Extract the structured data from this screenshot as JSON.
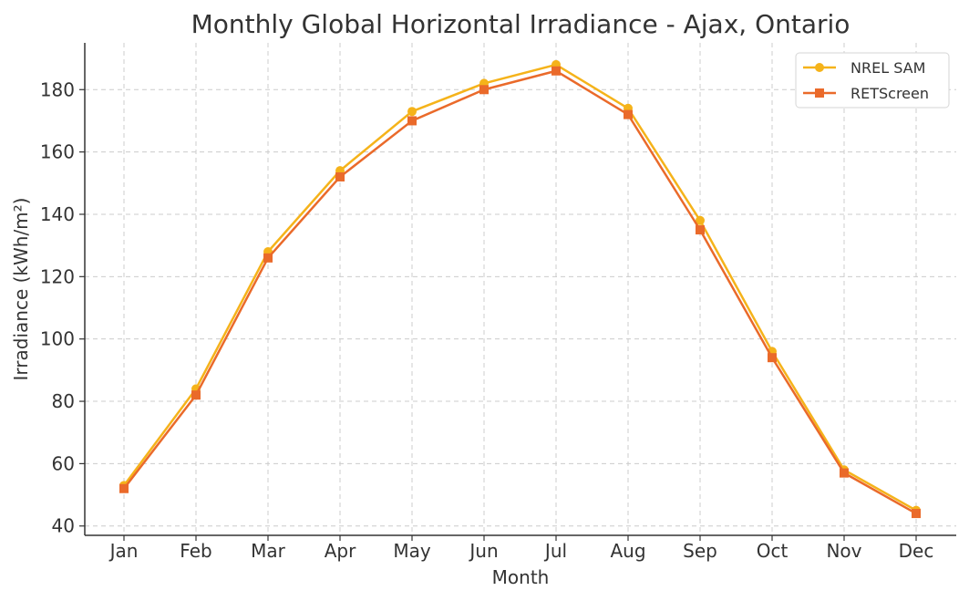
{
  "chart_data": {
    "type": "line",
    "title": "Monthly Global Horizontal Irradiance - Ajax, Ontario",
    "xlabel": "Month",
    "ylabel": "Irradiance (kWh/m²)",
    "categories": [
      "Jan",
      "Feb",
      "Mar",
      "Apr",
      "May",
      "Jun",
      "Jul",
      "Aug",
      "Sep",
      "Oct",
      "Nov",
      "Dec"
    ],
    "ylim": [
      37,
      195
    ],
    "yticks": [
      40,
      60,
      80,
      100,
      120,
      140,
      160,
      180
    ],
    "grid": true,
    "legend_position": "top-right",
    "series": [
      {
        "name": "NREL SAM",
        "color": "#f5b31a",
        "marker": "circle",
        "values": [
          53,
          84,
          128,
          154,
          173,
          182,
          188,
          174,
          138,
          96,
          58,
          45
        ]
      },
      {
        "name": "RETScreen",
        "color": "#ea6a2a",
        "marker": "square",
        "values": [
          52,
          82,
          126,
          152,
          170,
          180,
          186,
          172,
          135,
          94,
          57,
          44
        ]
      }
    ]
  }
}
